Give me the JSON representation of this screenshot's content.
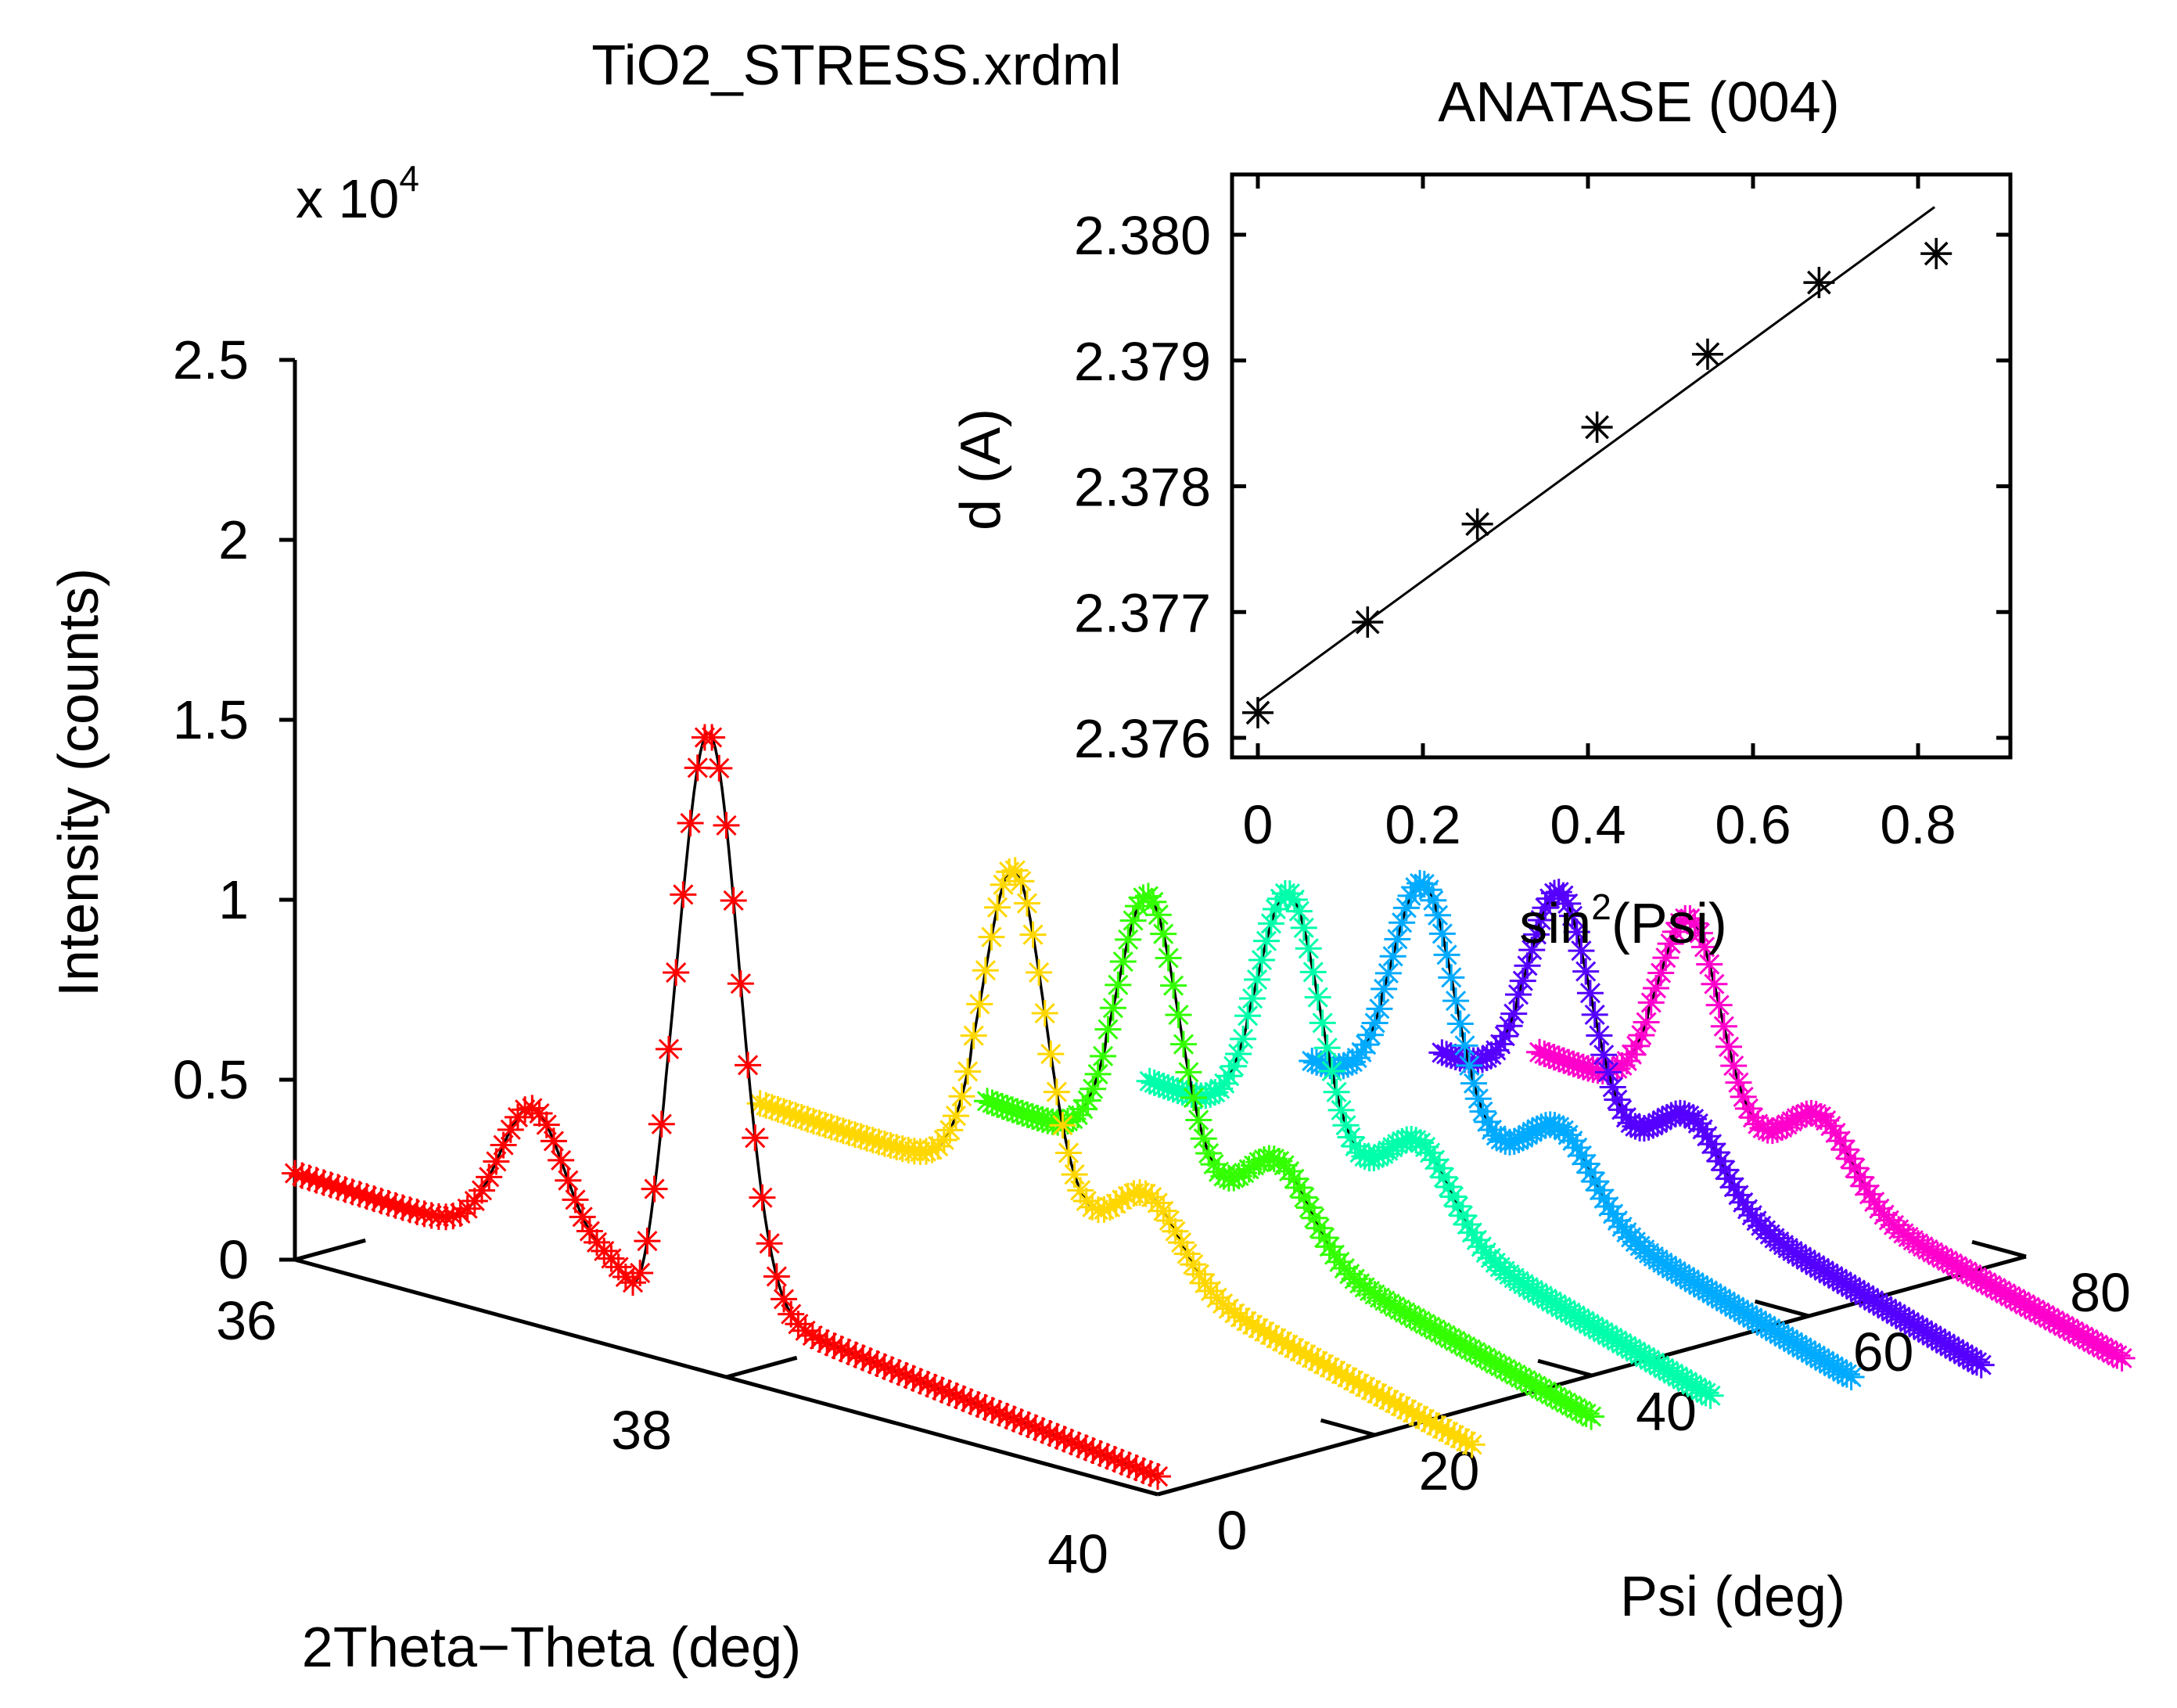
{
  "chart_data": [
    {
      "type": "line",
      "style": "3d-waterfall",
      "title": "TiO2_STRESS.xrdml",
      "zlabel": "Intensity (counts)",
      "zscale_label": "x 10",
      "zscale_exponent": "4",
      "xlabel": "2Theta−Theta (deg)",
      "ylabel": "Psi (deg)",
      "xlim": [
        36,
        40
      ],
      "ylim": [
        0,
        80
      ],
      "zlim": [
        0,
        2.5
      ],
      "xticks": [
        "36",
        "38",
        "40"
      ],
      "yticks": [
        "0",
        "20",
        "40",
        "60",
        "80"
      ],
      "zticks": [
        "0",
        "0.5",
        "1",
        "1.5",
        "2",
        "2.5"
      ],
      "marker": "asterisk",
      "fit_line_color": "#000000",
      "grid": false,
      "series": [
        {
          "psi": 0,
          "color": "#ff0000",
          "x_range": [
            36.0,
            40.0
          ],
          "background": 0.24,
          "background_end": 0.05,
          "peak_center": 37.92,
          "peak_height": 1.7,
          "side_peak_center": 37.1,
          "side_peak_height": 0.38
        },
        {
          "psi": 21,
          "color": "#ffd700",
          "x_range": [
            37.1,
            40.4
          ],
          "background": 0.44,
          "background_end": 0.03,
          "peak_center": 38.28,
          "peak_height": 1.15,
          "side_peak_center": 38.9,
          "side_peak_height": 0.2
        },
        {
          "psi": 30,
          "color": "#33ff00",
          "x_range": [
            37.7,
            40.5
          ],
          "background": 0.47,
          "background_end": 0.05,
          "peak_center": 38.45,
          "peak_height": 1.02,
          "side_peak_center": 39.05,
          "side_peak_height": 0.22
        },
        {
          "psi": 39,
          "color": "#00ffaa",
          "x_range": [
            38.0,
            40.6
          ],
          "background": 0.5,
          "background_end": 0.05,
          "peak_center": 38.65,
          "peak_height": 0.98,
          "side_peak_center": 39.25,
          "side_peak_height": 0.22
        },
        {
          "psi": 48,
          "color": "#00aaff",
          "x_range": [
            38.3,
            40.8
          ],
          "background": 0.53,
          "background_end": 0.06,
          "peak_center": 38.82,
          "peak_height": 0.95,
          "side_peak_center": 39.45,
          "side_peak_height": 0.2
        },
        {
          "psi": 56,
          "color": "#5500ff",
          "x_range": [
            38.5,
            41.0
          ],
          "background": 0.52,
          "background_end": 0.06,
          "peak_center": 39.05,
          "peak_height": 0.9,
          "side_peak_center": 39.65,
          "side_peak_height": 0.2
        },
        {
          "psi": 63,
          "color": "#ff00cc",
          "x_range": [
            38.6,
            41.3
          ],
          "background": 0.48,
          "background_end": 0.07,
          "peak_center": 39.3,
          "peak_height": 0.82,
          "side_peak_center": 39.9,
          "side_peak_height": 0.2
        }
      ]
    },
    {
      "type": "scatter",
      "title": "ANATASE (004)",
      "xlabel": "sin",
      "xlabel_sup": "2",
      "xlabel_suffix": "(Psi)",
      "ylabel": "d (A)",
      "xlim": [
        -0.03,
        0.9
      ],
      "ylim": [
        2.376,
        2.3805
      ],
      "xticks": [
        "0",
        "0.2",
        "0.4",
        "0.6",
        "0.8"
      ],
      "yticks": [
        "2.376",
        "2.377",
        "2.378",
        "2.379",
        "2.380"
      ],
      "marker": "asterisk",
      "marker_color": "#000000",
      "x": [
        0,
        0.133,
        0.266,
        0.411,
        0.545,
        0.68,
        0.822
      ],
      "y": [
        2.3762,
        2.37692,
        2.3777,
        2.37847,
        2.37905,
        2.37962,
        2.37985
      ],
      "fit_line": {
        "x": [
          0,
          0.82
        ],
        "y": [
          2.37629,
          2.38022
        ]
      }
    }
  ]
}
